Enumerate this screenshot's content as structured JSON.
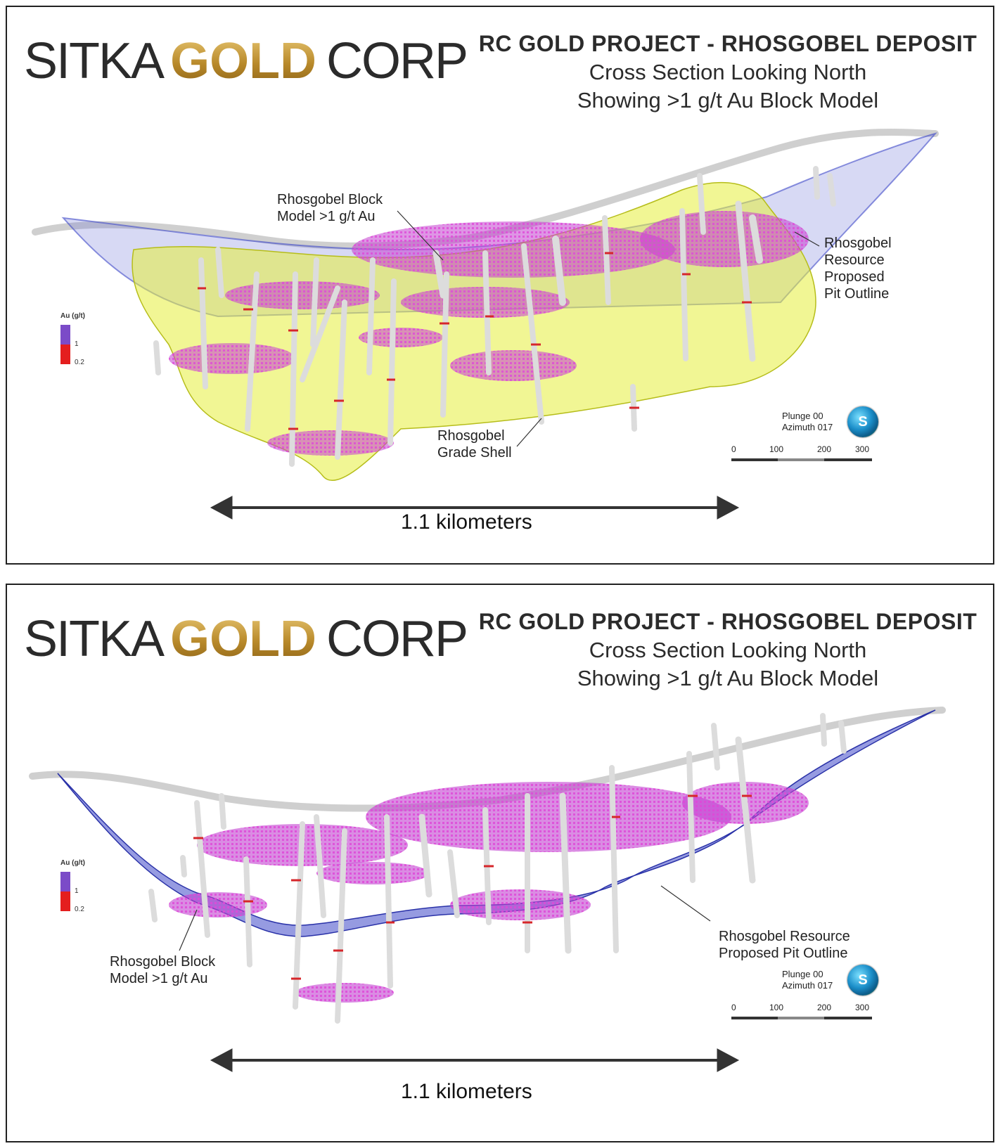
{
  "top_panel": {
    "logo": {
      "left": "SITKA",
      "gold": "GOLD",
      "right": "CORP"
    },
    "title": "RC GOLD PROJECT - RHOSGOBEL DEPOSIT",
    "subtitle1": "Cross Section Looking North",
    "subtitle2": "Showing >1 g/t Au Block Model",
    "legend": {
      "title": "Au (g/t)",
      "v1": "1",
      "v2": "0.2",
      "color_high": "#7b4bc8",
      "color_low": "#e41e1e"
    },
    "labels": {
      "block_model": [
        "Rhosgobel Block",
        "Model >1 g/t Au"
      ],
      "pit_outline": [
        "Rhosgobel",
        "Resource",
        "Proposed",
        "Pit Outline"
      ],
      "grade_shell": [
        "Rhosgobel",
        "Grade Shell"
      ]
    },
    "scale": {
      "plunge": "Plunge 00",
      "azimuth": "Azimuth 017",
      "ticks": [
        "0",
        "100",
        "200",
        "300"
      ],
      "globe": "S"
    },
    "distance": "1.1 kilometers"
  },
  "bottom_panel": {
    "logo": {
      "left": "SITKA",
      "gold": "GOLD",
      "right": "CORP"
    },
    "title": "RC GOLD PROJECT - RHOSGOBEL DEPOSIT",
    "subtitle1": "Cross Section Looking North",
    "subtitle2": "Showing >1 g/t Au Block Model",
    "legend": {
      "title": "Au (g/t)",
      "v1": "1",
      "v2": "0.2"
    },
    "labels": {
      "pit_outline": [
        "Rhosgobel Resource",
        "Proposed Pit Outline"
      ],
      "block_model": [
        "Rhosgobel Block",
        "Model >1 g/t Au"
      ]
    },
    "scale": {
      "plunge": "Plunge 00",
      "azimuth": "Azimuth 017",
      "ticks": [
        "0",
        "100",
        "200",
        "300"
      ],
      "globe": "S"
    },
    "distance": "1.1 kilometers"
  },
  "colors": {
    "grade_shell": "#e6ef3c",
    "block_model": "#c23fd0",
    "pit": "#3f49c8",
    "surface": "#cfcfcf",
    "drill_red": "#d6262a"
  }
}
